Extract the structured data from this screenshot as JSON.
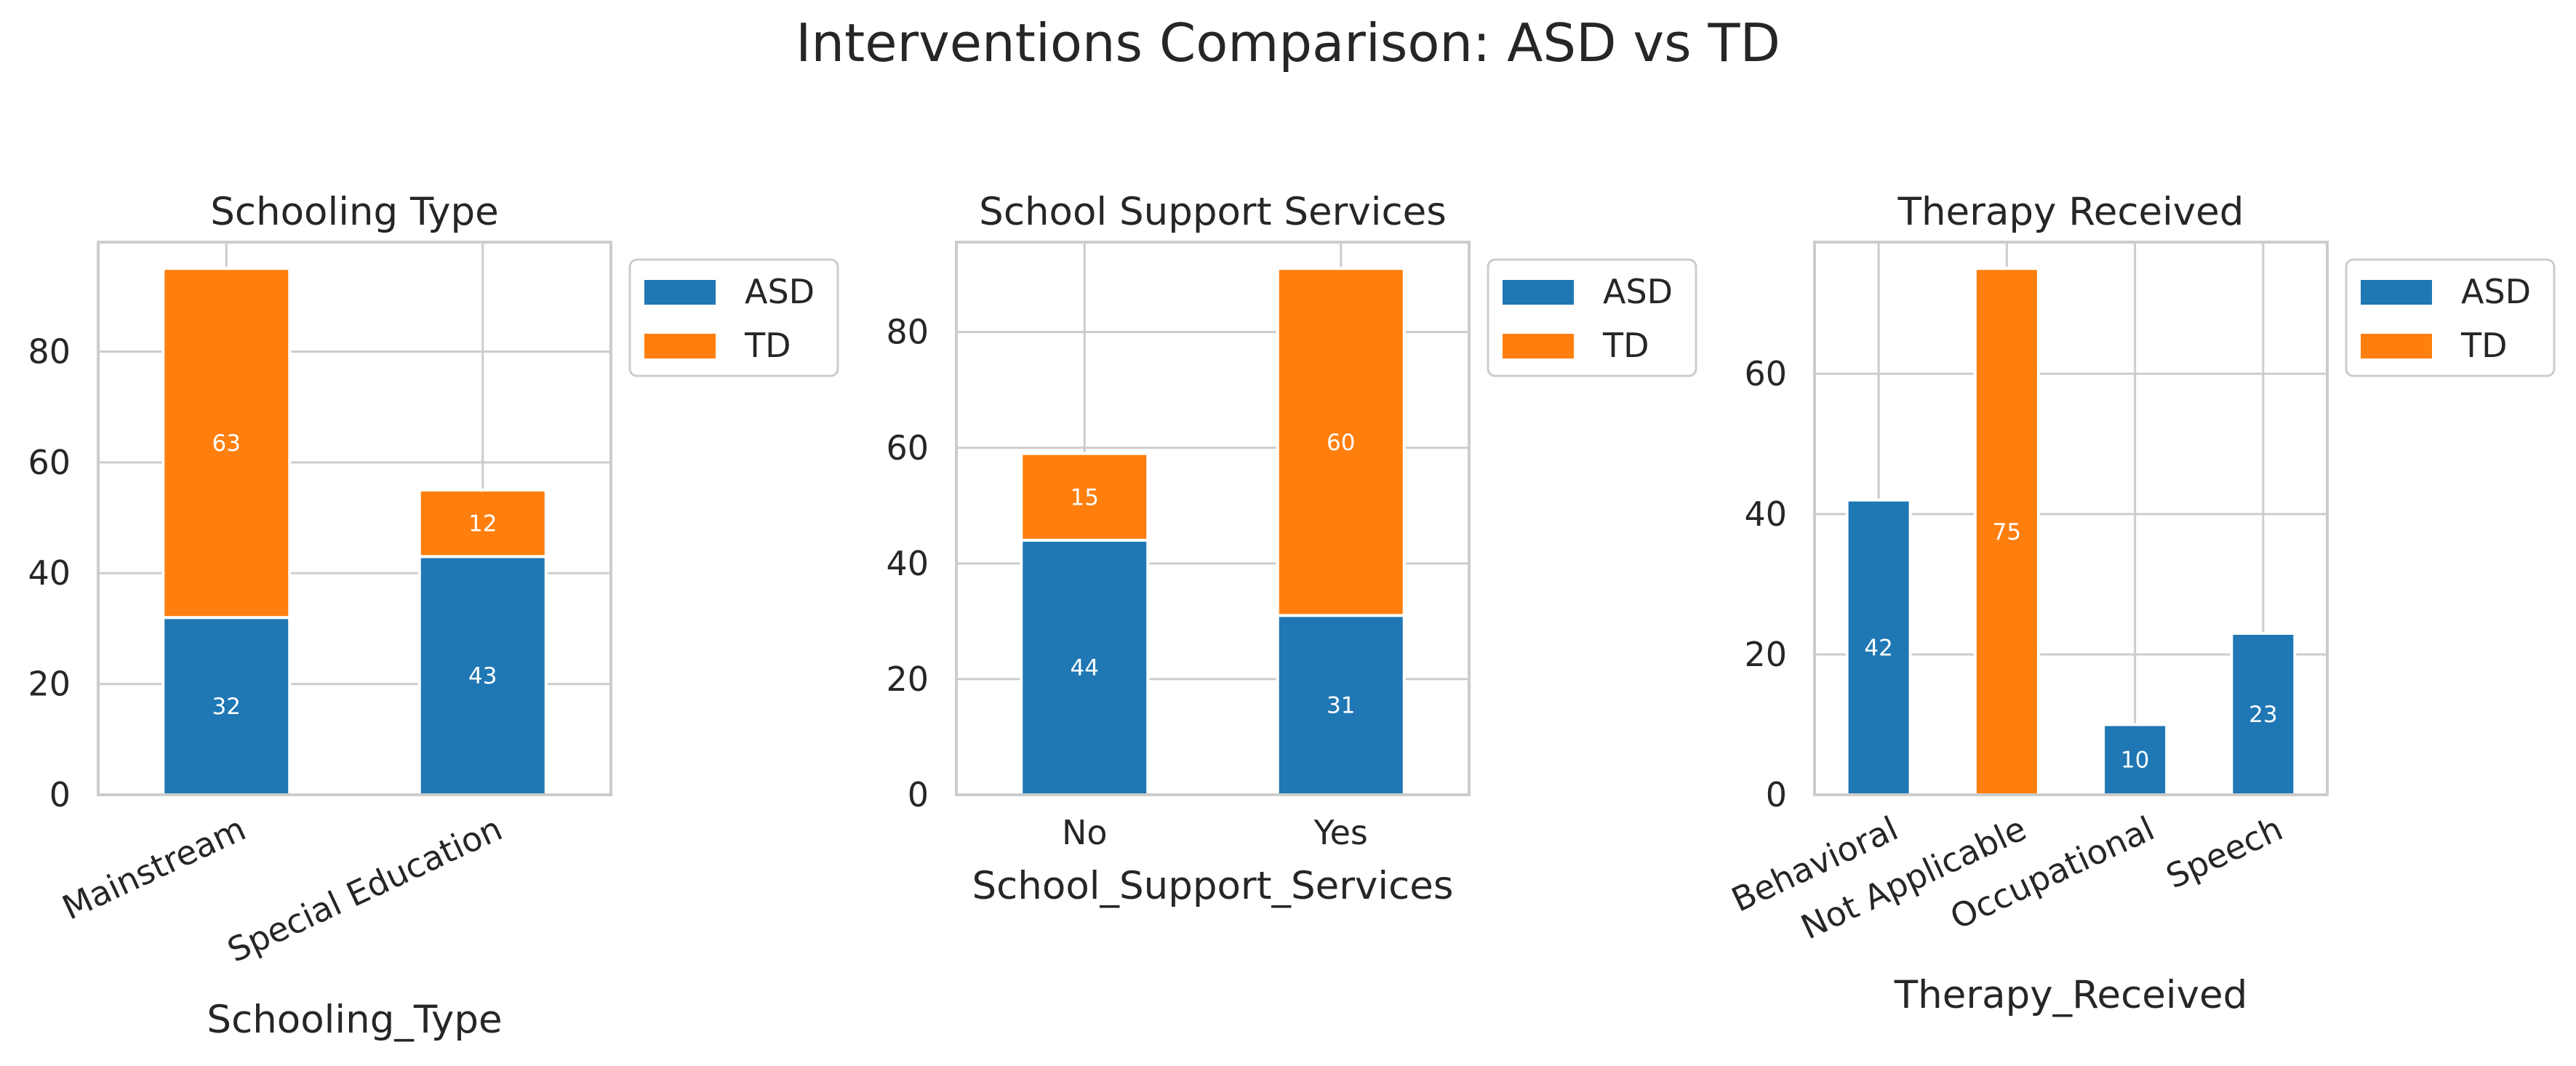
{
  "title": "Interventions Comparison: ASD vs TD",
  "colors": {
    "ASD": "#1f77b4",
    "TD": "#ff7f0e",
    "grid": "#cccccc",
    "frame": "#cccccc",
    "text": "#262626"
  },
  "chart_data": [
    {
      "type": "bar",
      "stacked": true,
      "title": "Schooling Type",
      "xlabel": "Schooling_Type",
      "ylabel": "",
      "categories": [
        "Mainstream",
        "Special Education"
      ],
      "series": [
        {
          "name": "ASD",
          "values": [
            32,
            43
          ]
        },
        {
          "name": "TD",
          "values": [
            63,
            12
          ]
        }
      ],
      "ylim": [
        0,
        99.75
      ],
      "yticks": [
        "0",
        "20",
        "40",
        "60",
        "80"
      ],
      "tick_rotation": 25,
      "legend": {
        "placement": "outside-right",
        "entries": [
          "ASD",
          "TD"
        ]
      },
      "grid": true
    },
    {
      "type": "bar",
      "stacked": true,
      "title": "School Support Services",
      "xlabel": "School_Support_Services",
      "ylabel": "",
      "categories": [
        "No",
        "Yes"
      ],
      "series": [
        {
          "name": "ASD",
          "values": [
            44,
            31
          ]
        },
        {
          "name": "TD",
          "values": [
            15,
            60
          ]
        }
      ],
      "ylim": [
        0,
        95.55
      ],
      "yticks": [
        "0",
        "20",
        "40",
        "60",
        "80"
      ],
      "tick_rotation": 0,
      "legend": {
        "placement": "outside-right",
        "entries": [
          "ASD",
          "TD"
        ]
      },
      "grid": true
    },
    {
      "type": "bar",
      "stacked": true,
      "title": "Therapy Received",
      "xlabel": "Therapy_Received",
      "ylabel": "",
      "categories": [
        "Behavioral",
        "Not Applicable",
        "Occupational",
        "Speech"
      ],
      "series": [
        {
          "name": "ASD",
          "values": [
            42,
            0,
            10,
            23
          ]
        },
        {
          "name": "TD",
          "values": [
            0,
            75,
            0,
            0
          ]
        }
      ],
      "ylim": [
        0,
        78.75
      ],
      "yticks": [
        "0",
        "20",
        "40",
        "60"
      ],
      "tick_rotation": 25,
      "legend": {
        "placement": "outside-right",
        "entries": [
          "ASD",
          "TD"
        ]
      },
      "grid": true
    }
  ]
}
